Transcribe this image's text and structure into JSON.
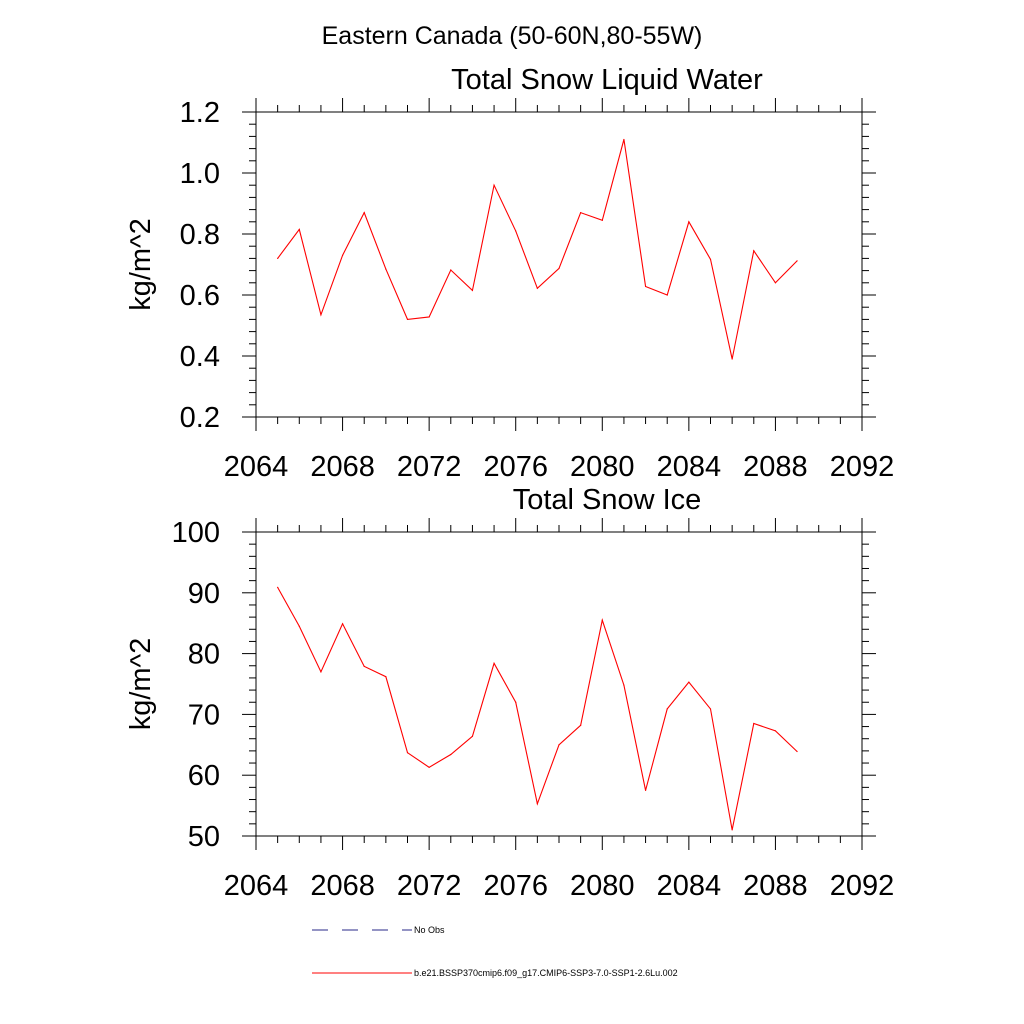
{
  "page_title": "Eastern Canada (50-60N,80-55W)",
  "line_color": "#ff0000",
  "obs_color": "#2a2a8a",
  "chart_data": [
    {
      "type": "line",
      "title": "Total Snow Liquid Water",
      "ylabel": "kg/m^2",
      "xlabel": "",
      "xlim": [
        2064,
        2092
      ],
      "ylim": [
        0.2,
        1.2
      ],
      "xticks": [
        2064,
        2068,
        2072,
        2076,
        2080,
        2084,
        2088,
        2092
      ],
      "xtick_labels": [
        "2064",
        "2068",
        "2072",
        "2076",
        "2080",
        "2084",
        "2088",
        "2092"
      ],
      "yticks": [
        0.2,
        0.4,
        0.6,
        0.8,
        1.0,
        1.2
      ],
      "ytick_labels": [
        "0.2",
        "0.4",
        "0.6",
        "0.8",
        "1.0",
        "1.2"
      ],
      "series": [
        {
          "x": [
            2065,
            2066,
            2067,
            2068,
            2069,
            2070,
            2071,
            2072,
            2073,
            2074,
            2075,
            2076,
            2077,
            2078,
            2079,
            2080,
            2081,
            2082,
            2083,
            2084,
            2085,
            2086,
            2087,
            2088,
            2089
          ],
          "values": [
            0.72,
            0.815,
            0.535,
            0.73,
            0.87,
            0.685,
            0.52,
            0.528,
            0.682,
            0.615,
            0.96,
            0.81,
            0.622,
            0.687,
            0.87,
            0.845,
            1.11,
            0.628,
            0.6,
            0.84,
            0.717,
            0.39,
            0.745,
            0.64,
            0.712
          ]
        }
      ]
    },
    {
      "type": "line",
      "title": "Total Snow Ice",
      "ylabel": "kg/m^2",
      "xlabel": "",
      "xlim": [
        2064,
        2092
      ],
      "ylim": [
        50,
        100
      ],
      "xticks": [
        2064,
        2068,
        2072,
        2076,
        2080,
        2084,
        2088,
        2092
      ],
      "xtick_labels": [
        "2064",
        "2068",
        "2072",
        "2076",
        "2080",
        "2084",
        "2088",
        "2092"
      ],
      "yticks": [
        50,
        60,
        70,
        80,
        90,
        100
      ],
      "ytick_labels": [
        "50",
        "60",
        "70",
        "80",
        "90",
        "100"
      ],
      "series": [
        {
          "x": [
            2065,
            2066,
            2067,
            2068,
            2069,
            2070,
            2071,
            2072,
            2073,
            2074,
            2075,
            2076,
            2077,
            2078,
            2079,
            2080,
            2081,
            2082,
            2083,
            2084,
            2085,
            2086,
            2087,
            2088,
            2089
          ],
          "values": [
            90.9,
            84.5,
            77.0,
            84.9,
            77.9,
            76.2,
            63.7,
            61.3,
            63.4,
            66.4,
            78.4,
            72.0,
            55.3,
            65.0,
            68.2,
            85.5,
            74.8,
            57.5,
            70.9,
            75.3,
            70.9,
            51.0,
            68.5,
            67.3,
            63.9
          ]
        }
      ]
    }
  ],
  "legend": [
    {
      "label": "No Obs",
      "style": "dashed"
    },
    {
      "label": "b.e21.BSSP370cmip6.f09_g17.CMIP6-SSP3-7.0-SSP1-2.6Lu.002",
      "style": "solid"
    }
  ]
}
